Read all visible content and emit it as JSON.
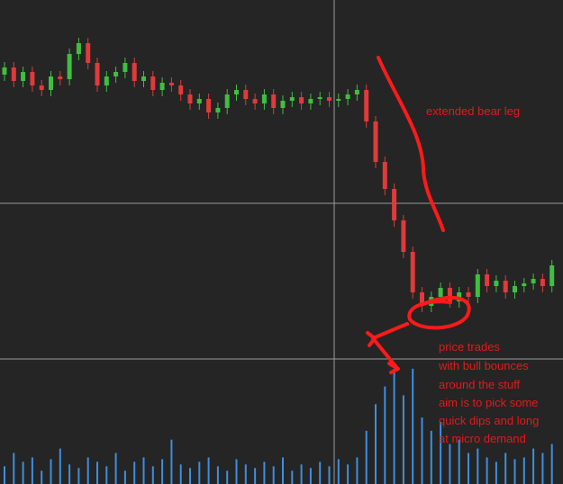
{
  "chart_data": {
    "type": "candlestick",
    "colors": {
      "up": "#3fbf3f",
      "down": "#e03a3a",
      "volume": "#3d8fe0",
      "crosshair": "#9a9a9a"
    },
    "ylim": [
      0,
      398
    ],
    "volume_lim": [
      0,
      140
    ],
    "open": [
      315,
      323,
      308,
      318,
      303,
      298,
      313,
      310,
      338,
      350,
      328,
      303,
      313,
      318,
      328,
      308,
      313,
      298,
      306,
      303,
      293,
      283,
      288,
      273,
      278,
      293,
      298,
      288,
      283,
      293,
      278,
      286,
      290,
      283,
      288,
      290,
      286,
      288,
      293,
      298,
      263,
      218,
      188,
      153,
      118,
      73,
      58,
      68,
      78,
      63,
      73,
      68,
      93,
      80,
      86,
      73,
      80,
      83,
      88,
      80
    ],
    "high": [
      329,
      329,
      324,
      324,
      309,
      319,
      319,
      344,
      356,
      356,
      334,
      319,
      324,
      334,
      334,
      319,
      319,
      312,
      312,
      309,
      299,
      294,
      294,
      284,
      299,
      304,
      304,
      294,
      299,
      299,
      292,
      296,
      296,
      294,
      296,
      296,
      294,
      299,
      304,
      304,
      269,
      224,
      194,
      159,
      124,
      79,
      74,
      84,
      84,
      79,
      79,
      99,
      99,
      92,
      92,
      86,
      89,
      94,
      94,
      109
    ],
    "low": [
      308,
      301,
      301,
      296,
      291,
      291,
      303,
      303,
      331,
      321,
      296,
      296,
      306,
      311,
      301,
      301,
      291,
      291,
      296,
      286,
      276,
      276,
      266,
      266,
      271,
      286,
      281,
      276,
      276,
      271,
      271,
      279,
      276,
      276,
      281,
      279,
      279,
      281,
      286,
      256,
      211,
      181,
      146,
      111,
      66,
      51,
      51,
      61,
      56,
      56,
      61,
      61,
      73,
      73,
      66,
      66,
      73,
      76,
      73,
      73
    ],
    "close": [
      323,
      308,
      318,
      303,
      298,
      313,
      310,
      338,
      350,
      328,
      303,
      313,
      318,
      328,
      308,
      313,
      298,
      306,
      303,
      293,
      283,
      288,
      273,
      278,
      293,
      298,
      288,
      283,
      293,
      278,
      286,
      290,
      283,
      288,
      290,
      286,
      288,
      293,
      298,
      263,
      218,
      188,
      153,
      118,
      73,
      58,
      68,
      78,
      63,
      73,
      68,
      93,
      80,
      86,
      73,
      80,
      83,
      88,
      80,
      103
    ],
    "volume": [
      20,
      35,
      25,
      30,
      15,
      28,
      40,
      22,
      18,
      30,
      25,
      20,
      35,
      15,
      25,
      30,
      20,
      28,
      50,
      22,
      18,
      25,
      30,
      20,
      15,
      28,
      22,
      18,
      25,
      20,
      30,
      15,
      22,
      18,
      25,
      20,
      28,
      22,
      30,
      60,
      90,
      110,
      130,
      100,
      130,
      75,
      60,
      70,
      45,
      50,
      35,
      40,
      30,
      25,
      35,
      28,
      30,
      40,
      35,
      45
    ],
    "annotations": [
      "extended bear leg",
      "price trades",
      "with bull bounces",
      "around the stuff",
      "aim is to pick some",
      "quick dips and long",
      "at micro demand"
    ]
  }
}
